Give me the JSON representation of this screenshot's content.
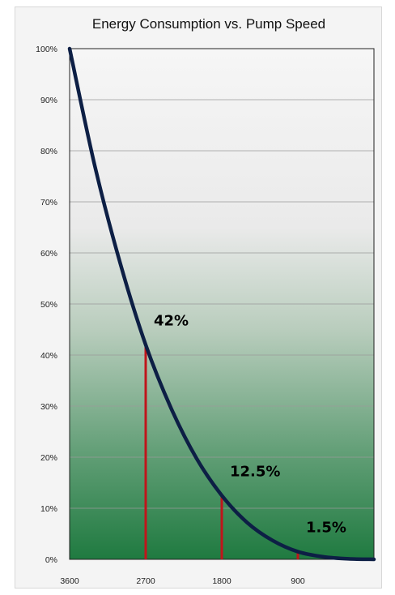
{
  "chart_data": {
    "type": "line",
    "title": "Energy Consumption vs. Pump Speed",
    "xlabel": "",
    "ylabel": "",
    "x_ticks": [
      "3600",
      "2700",
      "1800",
      "900"
    ],
    "y_ticks": [
      "0%",
      "10%",
      "20%",
      "30%",
      "40%",
      "50%",
      "60%",
      "70%",
      "80%",
      "90%",
      "100%"
    ],
    "xlim": [
      3600,
      0
    ],
    "ylim": [
      0,
      100
    ],
    "grid": true,
    "series": [
      {
        "name": "",
        "x": [
          3600,
          3300,
          3000,
          2700,
          2400,
          2100,
          1800,
          1500,
          1200,
          900,
          600,
          300,
          0
        ],
        "values": [
          100,
          76.9,
          57.9,
          42,
          29.6,
          19.8,
          12.5,
          7.2,
          3.7,
          1.5,
          0.5,
          0.1,
          0
        ]
      }
    ],
    "annotations": [
      {
        "x": 2700,
        "y": 42,
        "label": "42%"
      },
      {
        "x": 1800,
        "y": 12.5,
        "label": "12.5%"
      },
      {
        "x": 900,
        "y": 1.5,
        "label": "1.5%"
      }
    ],
    "colors": {
      "line": "#0d1f45",
      "drop_lines": "#c0151b",
      "plot_top": "#f5f5f5",
      "plot_bottom": "#1d7a3e"
    }
  }
}
